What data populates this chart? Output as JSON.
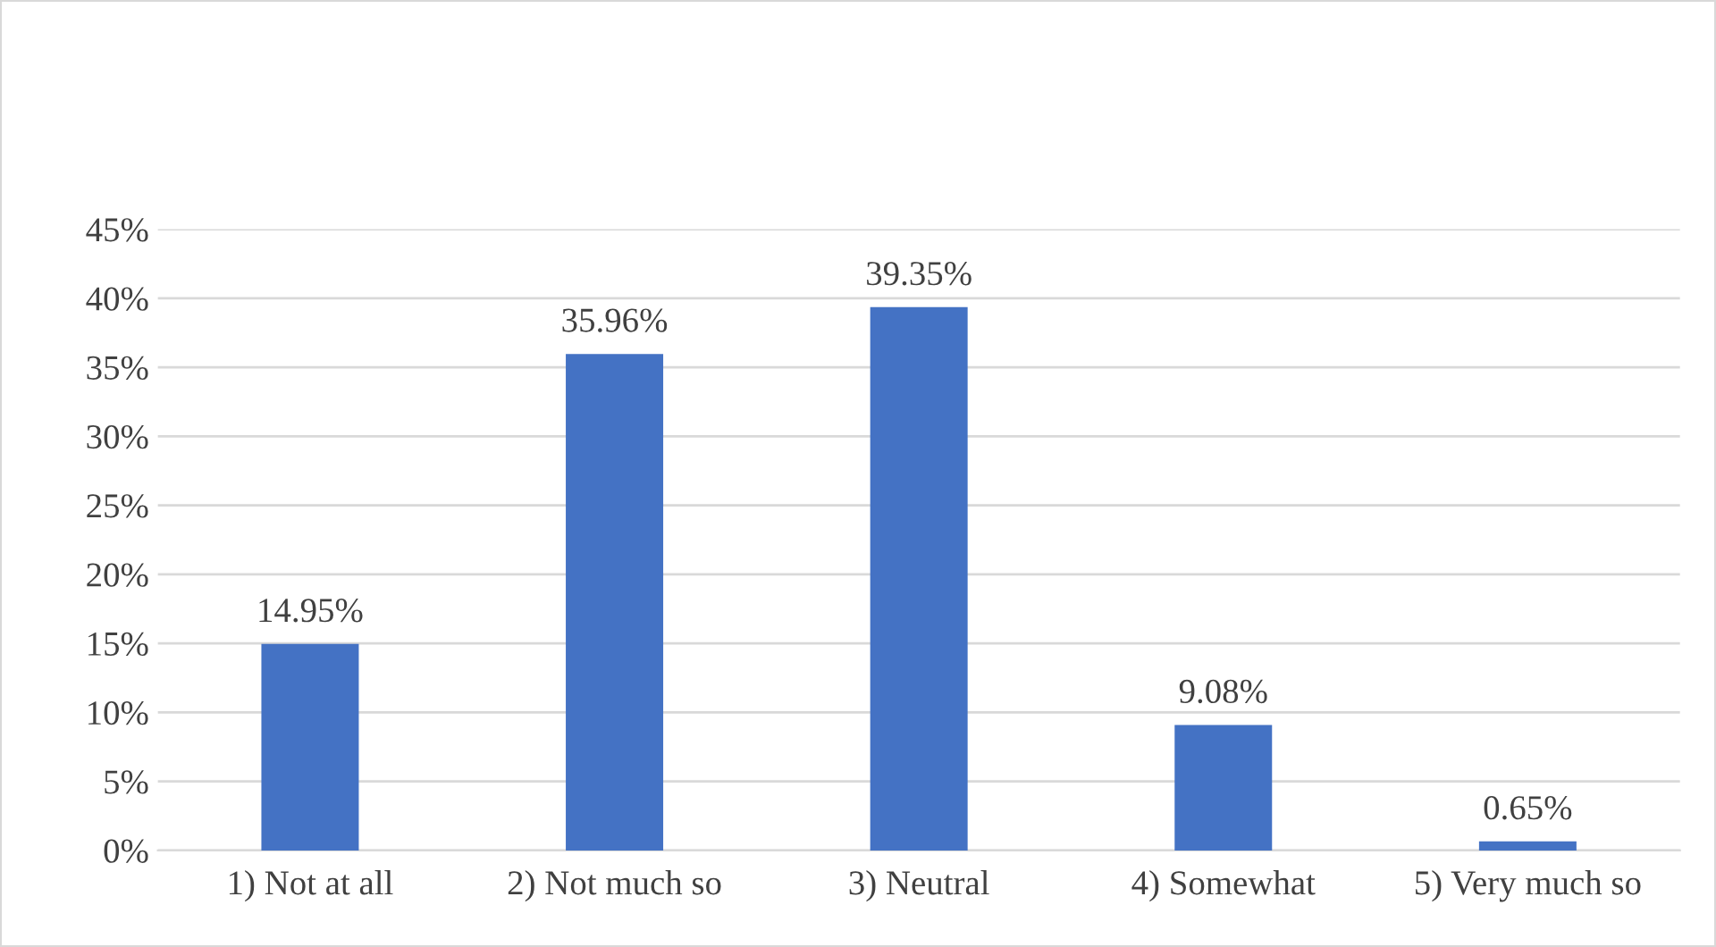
{
  "chart_data": {
    "type": "bar",
    "categories": [
      "1) Not at all",
      "2) Not much so",
      "3) Neutral",
      "4) Somewhat",
      "5) Very much so"
    ],
    "values": [
      14.95,
      35.96,
      39.35,
      9.08,
      0.65
    ],
    "value_labels": [
      "14.95%",
      "35.96%",
      "39.35%",
      "9.08%",
      "0.65%"
    ],
    "color": "#4472c4",
    "ylim": [
      0,
      45
    ],
    "yticks": [
      {
        "value": 0,
        "label": "0%"
      },
      {
        "value": 5,
        "label": "5%"
      },
      {
        "value": 10,
        "label": "10%"
      },
      {
        "value": 15,
        "label": "15%"
      },
      {
        "value": 20,
        "label": "20%"
      },
      {
        "value": 25,
        "label": "25%"
      },
      {
        "value": 30,
        "label": "30%"
      },
      {
        "value": 35,
        "label": "35%"
      },
      {
        "value": 40,
        "label": "40%"
      },
      {
        "value": 45,
        "label": "45%"
      }
    ],
    "grid": "y"
  }
}
